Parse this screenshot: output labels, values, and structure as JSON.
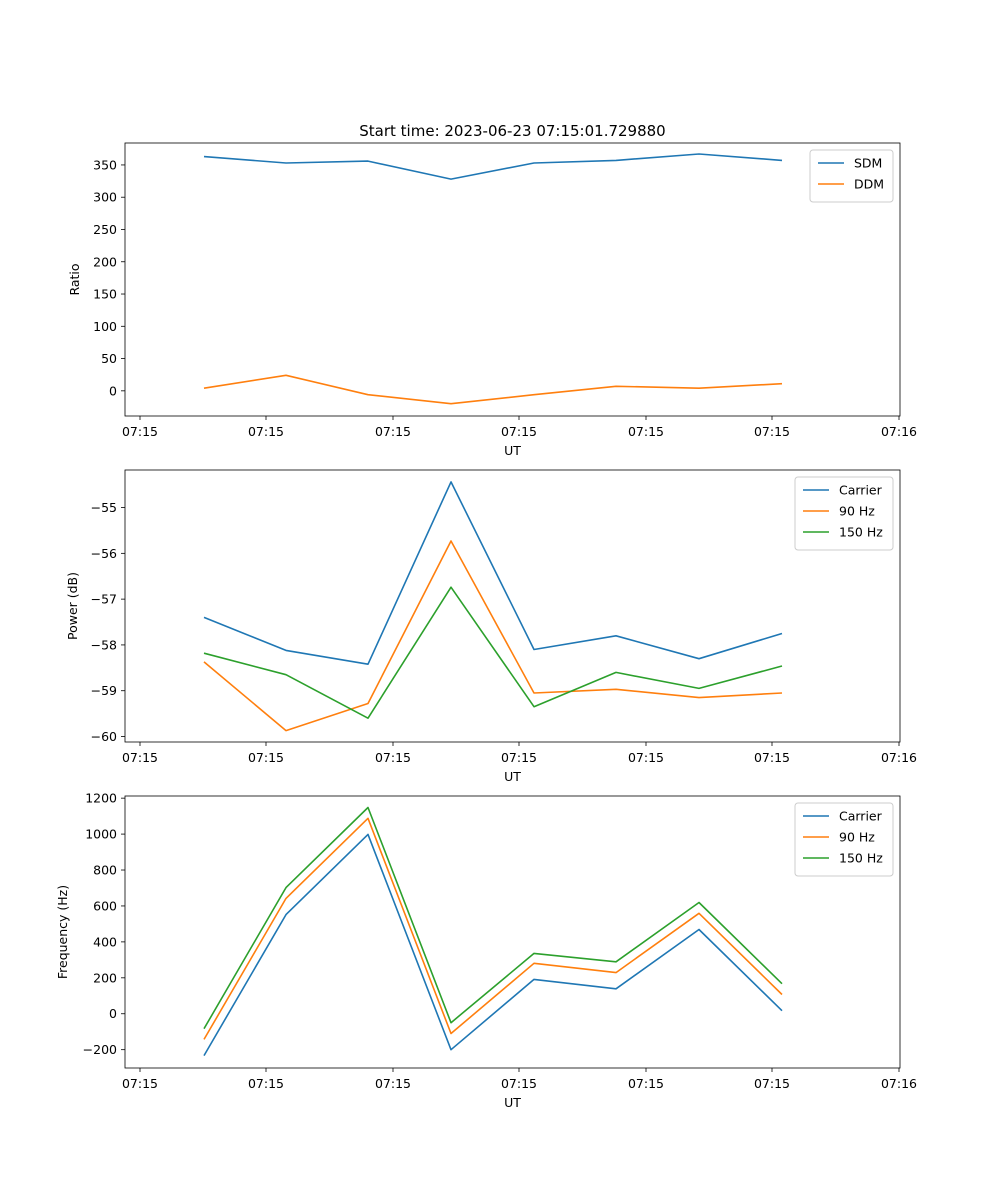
{
  "figure_title": "Start time: 2023-06-23 07:15:01.729880",
  "chart_data": [
    {
      "type": "line",
      "xlabel": "UT",
      "ylabel": "Ratio",
      "x_tick_labels": [
        "07:15",
        "07:15",
        "07:15",
        "07:15",
        "07:15",
        "07:15",
        "07:16"
      ],
      "yticks": [
        0,
        50,
        100,
        150,
        200,
        250,
        300,
        350
      ],
      "ylim": [
        -39,
        384
      ],
      "legend_position": "top-right",
      "series": [
        {
          "name": "SDM",
          "color": "#1f77b4",
          "values": [
            363,
            353,
            356,
            328,
            353,
            357,
            367,
            357
          ]
        },
        {
          "name": "DDM",
          "color": "#ff7f0e",
          "values": [
            4,
            24,
            -6,
            -20,
            -6,
            7,
            4,
            11
          ]
        }
      ]
    },
    {
      "type": "line",
      "xlabel": "UT",
      "ylabel": "Power (dB)",
      "x_tick_labels": [
        "07:15",
        "07:15",
        "07:15",
        "07:15",
        "07:15",
        "07:15",
        "07:16"
      ],
      "yticks": [
        -60,
        -59,
        -58,
        -57,
        -56,
        -55
      ],
      "ylim": [
        -60.12,
        -54.18
      ],
      "legend_position": "top-right",
      "series": [
        {
          "name": "Carrier",
          "color": "#1f77b4",
          "values": [
            -57.4,
            -58.12,
            -58.42,
            -54.44,
            -58.1,
            -57.8,
            -58.3,
            -57.75
          ]
        },
        {
          "name": "90 Hz",
          "color": "#ff7f0e",
          "values": [
            -58.37,
            -59.87,
            -59.28,
            -55.73,
            -59.05,
            -58.97,
            -59.15,
            -59.05
          ]
        },
        {
          "name": "150 Hz",
          "color": "#2ca02c",
          "values": [
            -58.18,
            -58.65,
            -59.6,
            -56.74,
            -59.35,
            -58.6,
            -58.95,
            -58.46
          ]
        }
      ]
    },
    {
      "type": "line",
      "xlabel": "UT",
      "ylabel": "Frequency (Hz)",
      "x_tick_labels": [
        "07:15",
        "07:15",
        "07:15",
        "07:15",
        "07:15",
        "07:15",
        "07:16"
      ],
      "yticks": [
        -200,
        0,
        200,
        400,
        600,
        800,
        1000,
        1200
      ],
      "ylim": [
        -302,
        1212
      ],
      "legend_position": "top-right",
      "series": [
        {
          "name": "Carrier",
          "color": "#1f77b4",
          "values": [
            -233,
            552,
            998,
            -200,
            191,
            139,
            469,
            17
          ]
        },
        {
          "name": "90 Hz",
          "color": "#ff7f0e",
          "values": [
            -143,
            642,
            1088,
            -110,
            281,
            229,
            559,
            107
          ]
        },
        {
          "name": "150 Hz",
          "color": "#2ca02c",
          "values": [
            -83,
            702,
            1148,
            -50,
            336,
            289,
            619,
            167
          ]
        }
      ]
    }
  ]
}
